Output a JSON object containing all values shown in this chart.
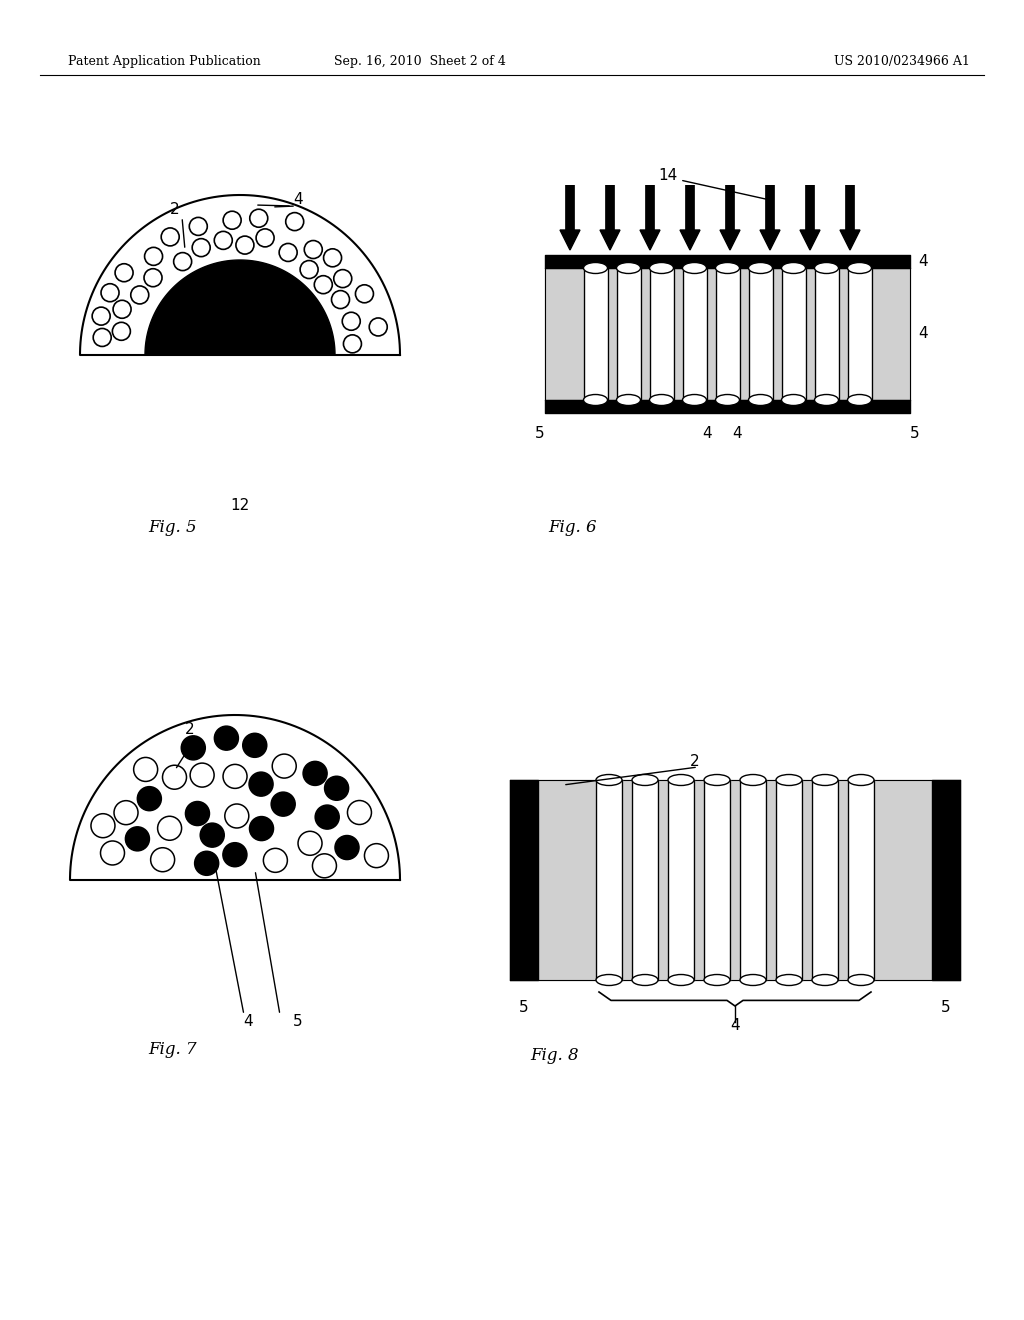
{
  "bg_color": "#ffffff",
  "header_left": "Patent Application Publication",
  "header_mid": "Sep. 16, 2010  Sheet 2 of 4",
  "header_right": "US 2010/0234966 A1",
  "fig5_label": "Fig. 5",
  "fig6_label": "Fig. 6",
  "fig7_label": "Fig. 7",
  "fig8_label": "Fig. 8"
}
